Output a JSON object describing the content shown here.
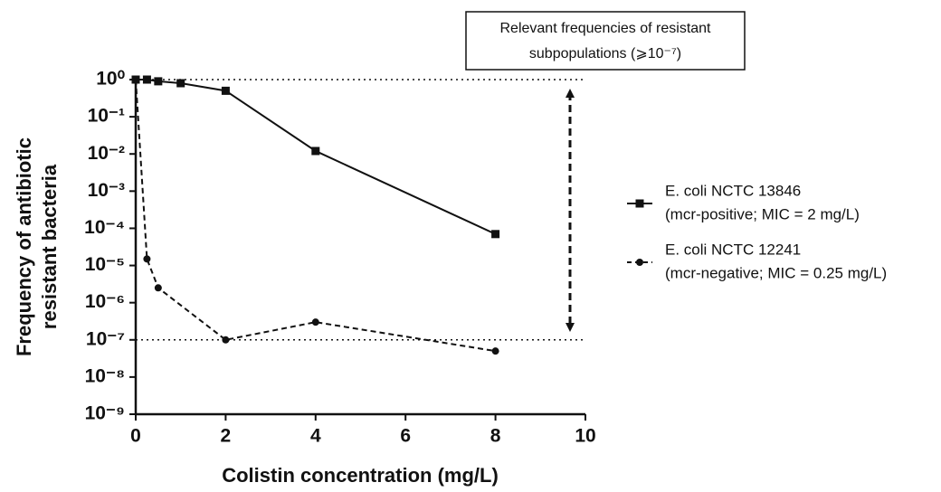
{
  "chart_data": {
    "type": "line",
    "log_y": true,
    "xlabel": "Colistin concentration (mg/L)",
    "ylabel": [
      "Frequency of antibiotic",
      "resistant bacteria"
    ],
    "annotation": [
      "Relevant frequencies of resistant",
      "subpopulations (⩾10⁻⁷)"
    ],
    "xlim": [
      0,
      10
    ],
    "xticks": [
      0,
      2,
      4,
      6,
      8,
      10
    ],
    "ylim": [
      1e-09,
      1
    ],
    "yticks": [
      {
        "value": 1,
        "label": "10⁰"
      },
      {
        "value": 0.1,
        "label": "10⁻¹"
      },
      {
        "value": 0.01,
        "label": "10⁻²"
      },
      {
        "value": 0.001,
        "label": "10⁻³"
      },
      {
        "value": 0.0001,
        "label": "10⁻⁴"
      },
      {
        "value": 1e-05,
        "label": "10⁻⁵"
      },
      {
        "value": 1e-06,
        "label": "10⁻⁶"
      },
      {
        "value": 1e-07,
        "label": "10⁻⁷"
      },
      {
        "value": 1e-08,
        "label": "10⁻⁸"
      },
      {
        "value": 1e-09,
        "label": "10⁻⁹"
      }
    ],
    "reference_lines": [
      1,
      1e-07
    ],
    "series": [
      {
        "name": "E. coli NCTC 13846",
        "detail": "(mcr-positive; MIC = 2 mg/L)",
        "color": "#111111",
        "marker": "square",
        "dashed": false,
        "x": [
          0,
          0.25,
          0.5,
          1,
          2,
          4,
          8
        ],
        "values": [
          1,
          1,
          0.9,
          0.8,
          0.5,
          0.012,
          7e-05
        ]
      },
      {
        "name": "E. coli NCTC 12241",
        "detail": "(mcr-negative; MIC = 0.25 mg/L)",
        "color": "#111111",
        "marker": "circle",
        "dashed": true,
        "x": [
          0,
          0.25,
          0.5,
          2,
          4,
          8
        ],
        "values": [
          1,
          1.5e-05,
          2.5e-06,
          1e-07,
          3e-07,
          5e-08
        ]
      }
    ]
  }
}
